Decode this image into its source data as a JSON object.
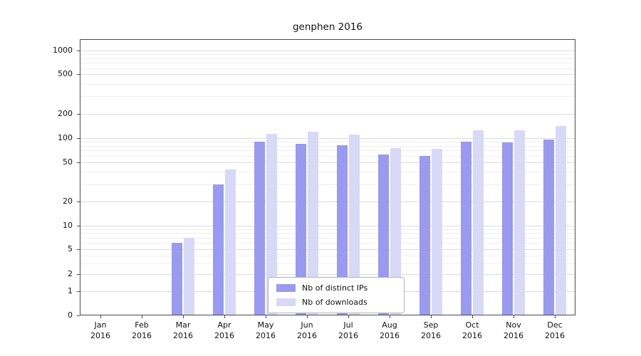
{
  "chart_data": {
    "type": "bar",
    "title": "genphen 2016",
    "scale": "symlog",
    "grid": true,
    "legend_position": "inside-bottom-center",
    "categories": [
      "Jan",
      "Feb",
      "Mar",
      "Apr",
      "May",
      "Jun",
      "Jul",
      "Aug",
      "Sep",
      "Oct",
      "Nov",
      "Dec"
    ],
    "x_year": "2016",
    "y_ticks": [
      0,
      1,
      2,
      5,
      10,
      20,
      50,
      100,
      200,
      500,
      1000
    ],
    "ylim": [
      0,
      1200
    ],
    "series": [
      {
        "name": "Nb of distinct IPs",
        "color": "#9a9aee",
        "values": [
          0,
          0,
          6,
          30,
          90,
          85,
          82,
          63,
          60,
          90,
          88,
          95
        ]
      },
      {
        "name": "Nb of downloads",
        "color": "#d8d8f7",
        "values": [
          0,
          0,
          7,
          42,
          112,
          120,
          110,
          75,
          73,
          125,
          125,
          140
        ]
      }
    ]
  }
}
